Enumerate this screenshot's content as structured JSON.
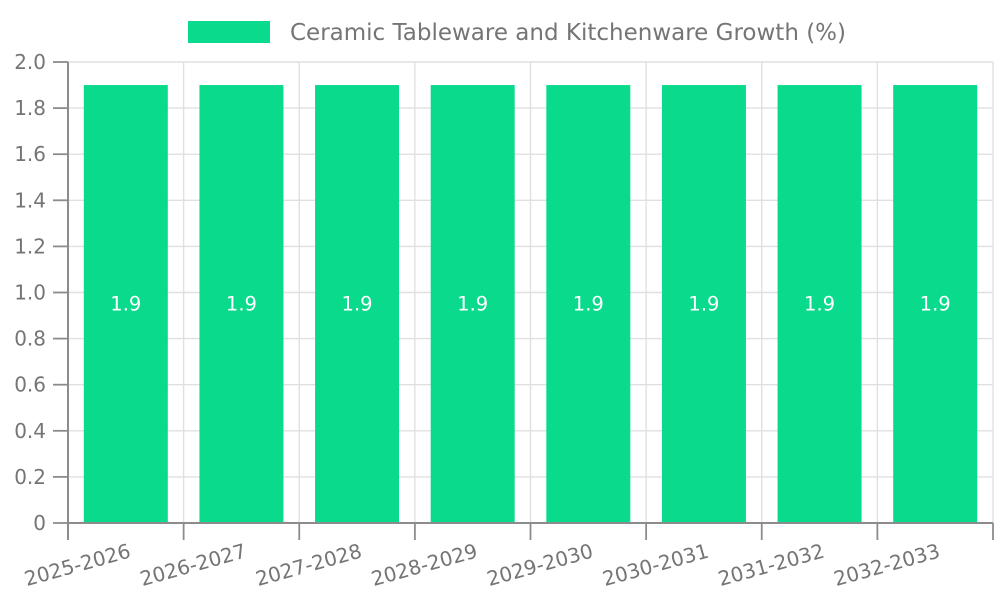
{
  "legend": {
    "label": "Ceramic Tableware and Kitchenware Growth (%)",
    "position": "top-center"
  },
  "chart_data": {
    "type": "bar",
    "title": "",
    "xlabel": "",
    "ylabel": "",
    "categories": [
      "2025-2026",
      "2026-2027",
      "2027-2028",
      "2028-2029",
      "2029-2030",
      "2030-2031",
      "2031-2032",
      "2032-2033"
    ],
    "series": [
      {
        "name": "Ceramic Tableware and Kitchenware Growth (%)",
        "color": "#0ADA8C",
        "values": [
          1.9,
          1.9,
          1.9,
          1.9,
          1.9,
          1.9,
          1.9,
          1.9
        ],
        "value_labels": [
          "1.9",
          "1.9",
          "1.9",
          "1.9",
          "1.9",
          "1.9",
          "1.9",
          "1.9"
        ]
      }
    ],
    "ylim": [
      0,
      2.0
    ],
    "y_ticks": {
      "values": [
        0,
        0.2,
        0.4,
        0.6,
        0.8,
        1.0,
        1.2,
        1.4,
        1.6,
        1.8,
        2.0
      ],
      "labels": [
        "0",
        "0.2",
        "0.4",
        "0.6",
        "0.8",
        "1.0",
        "1.2",
        "1.4",
        "1.6",
        "1.8",
        "2.0"
      ]
    },
    "grid": true,
    "legend_position": "top-center",
    "x_tick_rotation_deg": -15.5,
    "bar_value_label_position": "middle"
  },
  "colors": {
    "bar": "#0ADA8C",
    "grid": "#E0E0E0",
    "axis": "#8C8C8C",
    "tick_label": "#757575",
    "legend_text": "#757575",
    "bar_value_label": "#FFFFFF",
    "background": "#FFFFFF"
  }
}
